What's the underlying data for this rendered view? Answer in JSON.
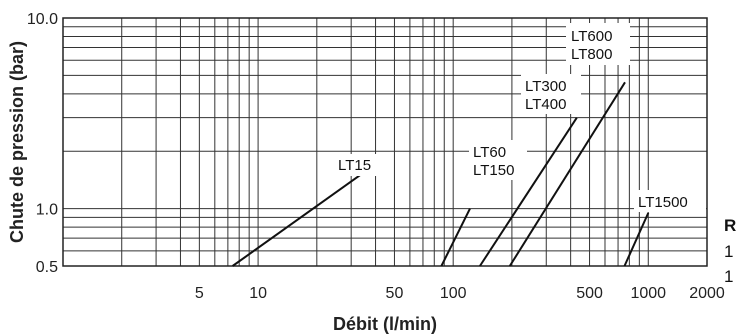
{
  "chart_data": {
    "type": "line",
    "xlabel": "Débit (l/min)",
    "ylabel": "Chute de pression (bar)",
    "x_scale": "log",
    "y_scale": "log",
    "xlim": [
      1,
      2000
    ],
    "ylim": [
      0.5,
      10
    ],
    "x_ticks": [
      {
        "value": 5,
        "label": "5"
      },
      {
        "value": 10,
        "label": "10"
      },
      {
        "value": 50,
        "label": "50"
      },
      {
        "value": 100,
        "label": "100"
      },
      {
        "value": 500,
        "label": "500"
      },
      {
        "value": 1000,
        "label": "1000"
      },
      {
        "value": 2000,
        "label": "2000"
      }
    ],
    "y_ticks": [
      {
        "value": 0.5,
        "label": "0.5"
      },
      {
        "value": 1.0,
        "label": "1.0"
      },
      {
        "value": 10.0,
        "label": "10.0"
      }
    ],
    "grid": true,
    "series": [
      {
        "name": "LT15",
        "points": [
          [
            7.4,
            0.5
          ],
          [
            38,
            1.65
          ]
        ]
      },
      {
        "name": "LT60",
        "points": [
          [
            87,
            0.5
          ],
          [
            122,
            1.0
          ]
        ]
      },
      {
        "name": "LT150",
        "points": [
          [
            87,
            0.5
          ],
          [
            122,
            1.0
          ]
        ]
      },
      {
        "name": "LT300",
        "points": [
          [
            137,
            0.5
          ],
          [
            430,
            3.0
          ]
        ]
      },
      {
        "name": "LT400",
        "points": [
          [
            137,
            0.5
          ],
          [
            430,
            3.0
          ]
        ]
      },
      {
        "name": "LT600",
        "points": [
          [
            195,
            0.5
          ],
          [
            760,
            4.6
          ]
        ]
      },
      {
        "name": "LT800",
        "points": [
          [
            195,
            0.5
          ],
          [
            760,
            4.6
          ]
        ]
      },
      {
        "name": "LT1500",
        "points": [
          [
            755,
            0.5
          ],
          [
            1000,
            0.95
          ]
        ]
      }
    ],
    "annotations": [
      "LT15",
      "LT60",
      "LT150",
      "LT300",
      "LT400",
      "LT600",
      "LT800",
      "LT1500"
    ],
    "side_text": [
      "R",
      "1",
      "1"
    ]
  }
}
